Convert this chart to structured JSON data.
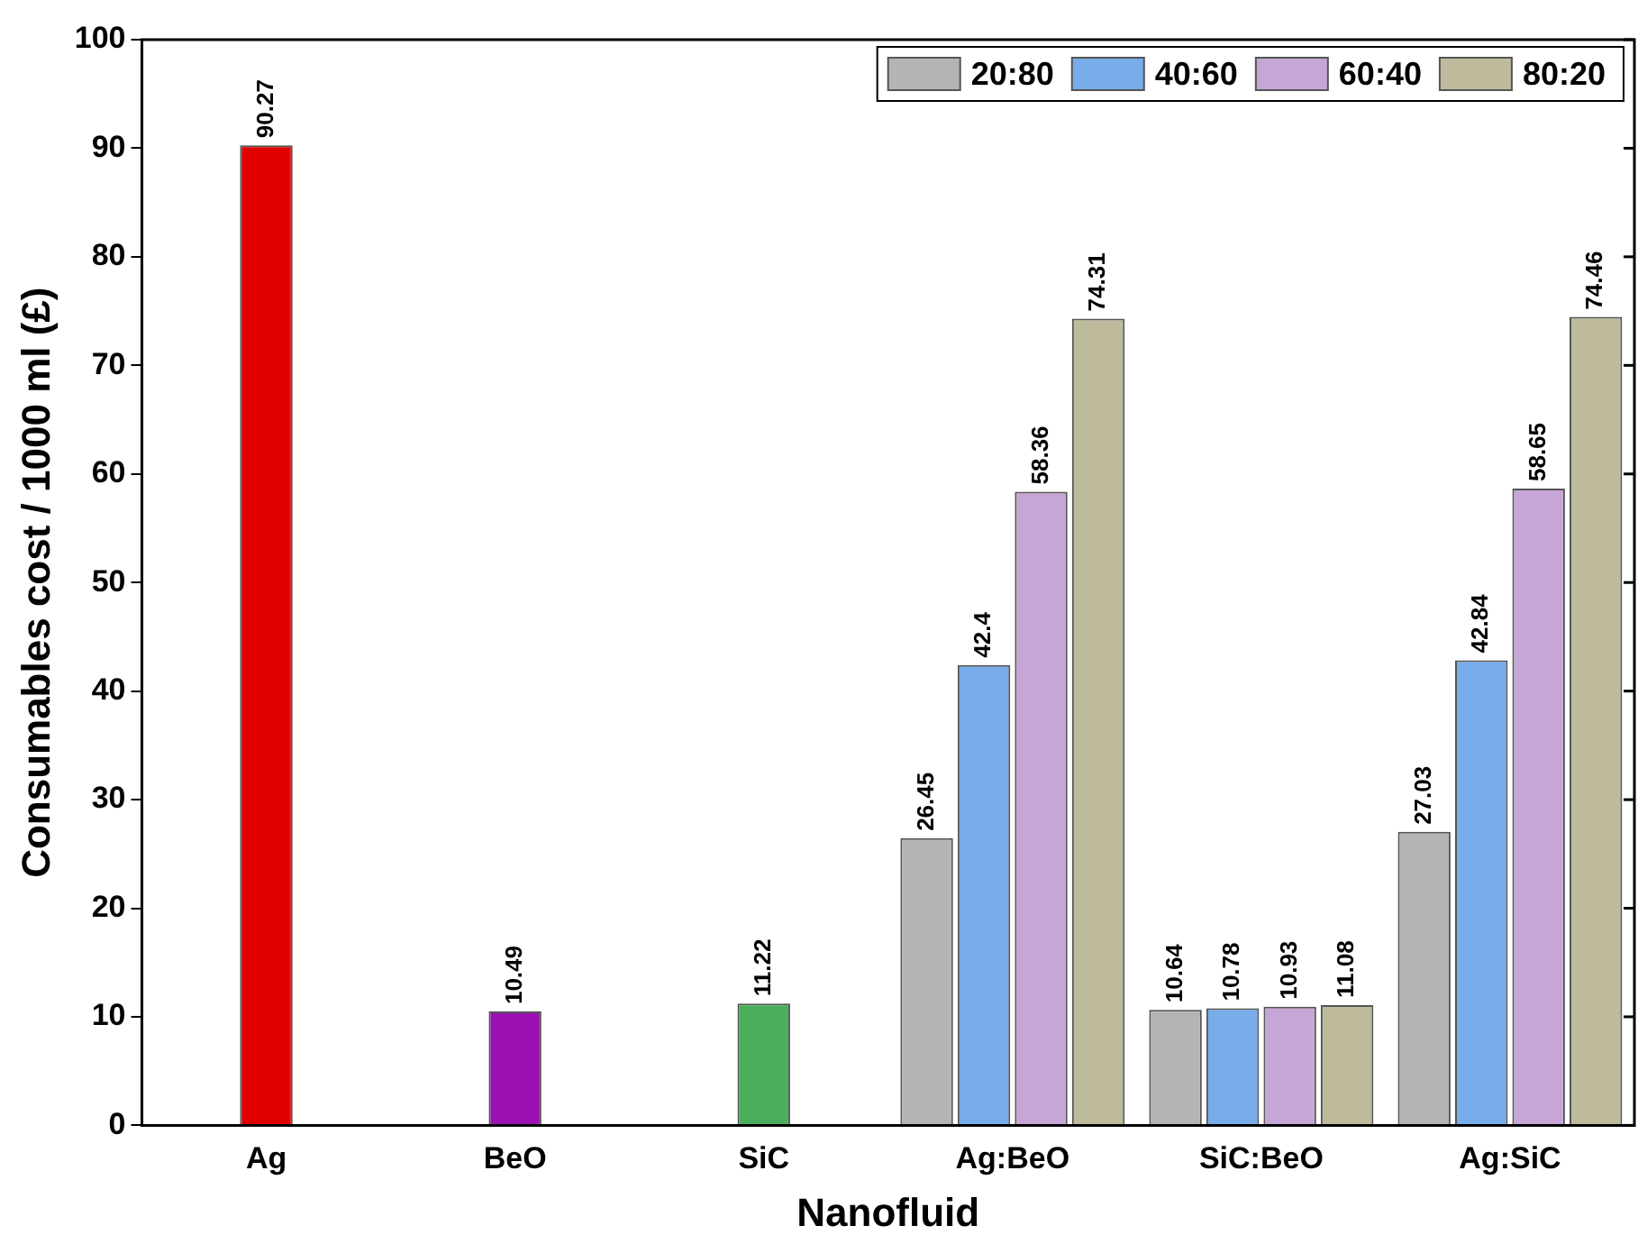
{
  "chart_data": {
    "type": "bar",
    "xlabel": "Nanofluid",
    "ylabel": "Consumables cost / 1000 ml (£)",
    "categories": [
      "Ag",
      "BeO",
      "SiC",
      "Ag:BeO",
      "SiC:BeO",
      "Ag:SiC"
    ],
    "series": [
      {
        "colors": [
          "#e00000",
          "#9c10b4",
          "#4cae5c",
          null,
          null,
          null
        ],
        "values": [
          90.27,
          10.49,
          11.22,
          null,
          null,
          null
        ]
      },
      {
        "name": "20:80",
        "color": "#b4b4b4",
        "values": [
          null,
          null,
          null,
          26.45,
          10.64,
          27.03
        ]
      },
      {
        "name": "40:60",
        "color": "#78acea",
        "values": [
          null,
          null,
          null,
          42.4,
          10.78,
          42.84
        ]
      },
      {
        "name": "60:40",
        "color": "#c6a6d6",
        "values": [
          null,
          null,
          null,
          58.36,
          10.93,
          58.65
        ]
      },
      {
        "name": "80:20",
        "color": "#bebb9c",
        "values": [
          null,
          null,
          null,
          74.31,
          11.08,
          74.46
        ]
      }
    ],
    "ylim": [
      0,
      100
    ],
    "yticks": [
      0,
      10,
      20,
      30,
      40,
      50,
      60,
      70,
      80,
      90,
      100
    ],
    "grid": false,
    "legend": "top right",
    "data_labels": true
  }
}
